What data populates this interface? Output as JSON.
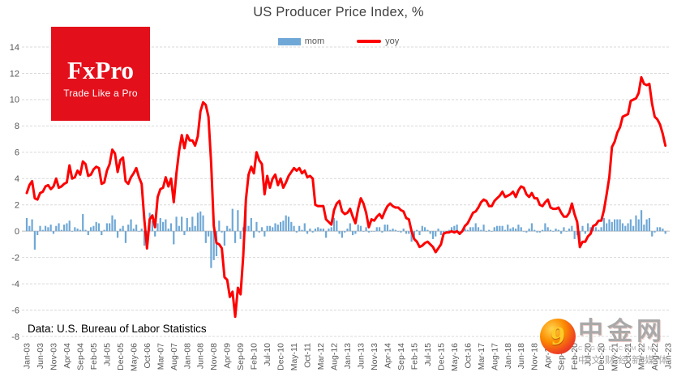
{
  "title": "US Producer Price Index, %",
  "logo": {
    "brand": "FxPro",
    "tagline": "Trade Like a Pro",
    "bg_color": "#e30f1b"
  },
  "legend": [
    {
      "label": "mom",
      "color": "#6fa8d6",
      "swatch": "bar"
    },
    {
      "label": "yoy",
      "color": "#fe0000",
      "swatch": "line"
    }
  ],
  "footer": {
    "source_note": "Data: U.S. Bureau of Labor Statistics"
  },
  "watermark": {
    "name": "中金网",
    "domain": "CNGOLD.COM.CN",
    "tagline": "中文财经新媒体"
  },
  "colors": {
    "grid": "#d9d9d9",
    "zero_axis": "#bfbfbf",
    "axis_text": "#595959",
    "title_text": "#3f3f3f"
  },
  "chart_data": {
    "type": "combo",
    "title": "US Producer Price Index, %",
    "ylim": [
      -8,
      14
    ],
    "y_tick_labels": [
      14,
      12,
      10,
      8,
      6,
      4,
      2,
      0,
      -2,
      -4,
      -6,
      -8
    ],
    "grid": "horizontal-dashed",
    "legend_position": "top-center",
    "x_start_month": "Jan-03",
    "x_tick_interval_months": 5,
    "n_slots": 241,
    "x_tick_labels": [
      "Jan-03",
      "Jun-03",
      "Nov-03",
      "Apr-04",
      "Sep-04",
      "Feb-05",
      "Jul-05",
      "Dec-05",
      "May-06",
      "Oct-06",
      "Mar-07",
      "Aug-07",
      "Jan-08",
      "Jun-08",
      "Nov-08",
      "Apr-09",
      "Sep-09",
      "Feb-10",
      "Jul-10",
      "Dec-10",
      "May-11",
      "Oct-11",
      "Mar-12",
      "Aug-12",
      "Jan-13",
      "Jun-13",
      "Nov-13",
      "Apr-14",
      "Sep-14",
      "Feb-15",
      "Jul-15",
      "Dec-15",
      "May-16",
      "Oct-16",
      "Mar-17",
      "Aug-17",
      "Jan-18",
      "Jun-18",
      "Nov-18",
      "Apr-19",
      "Sep-19",
      "Feb-20",
      "Jul-20",
      "Dec-20",
      "May-21",
      "Oct-21",
      "Mar-22",
      "Aug-22",
      "Jan-23"
    ],
    "series": [
      {
        "name": "mom",
        "type": "bar",
        "color": "#6fa8d6",
        "values": [
          1.0,
          0.4,
          0.9,
          -1.4,
          -0.3,
          0.4,
          0.1,
          0.4,
          0.3,
          0.5,
          -0.2,
          0.4,
          0.6,
          0.1,
          0.5,
          0.6,
          0.8,
          0.0,
          0.3,
          0.2,
          0.1,
          1.3,
          0.1,
          -0.3,
          0.3,
          0.4,
          0.7,
          0.6,
          -0.3,
          0.1,
          0.6,
          0.6,
          1.2,
          0.9,
          -0.5,
          0.2,
          0.4,
          -0.9,
          0.5,
          0.9,
          0.2,
          0.5,
          0.0,
          0.2,
          -1.1,
          -1.4,
          1.4,
          0.8,
          -0.4,
          0.6,
          1.0,
          0.7,
          0.9,
          0.2,
          0.6,
          -1.0,
          1.1,
          0.4,
          1.1,
          -0.3,
          1.0,
          0.3,
          1.1,
          0.4,
          1.4,
          1.5,
          1.2,
          -0.9,
          -0.4,
          -2.8,
          -2.2,
          -1.9,
          0.8,
          -0.1,
          -1.1,
          0.4,
          0.2,
          1.7,
          -0.9,
          1.6,
          -0.6,
          0.3,
          1.7,
          0.4,
          1.0,
          -0.5,
          0.7,
          -0.1,
          0.3,
          -0.4,
          0.4,
          0.4,
          0.3,
          0.6,
          0.5,
          0.7,
          0.8,
          1.2,
          1.1,
          0.7,
          0.4,
          -0.1,
          0.4,
          0.1,
          0.6,
          -0.2,
          0.2,
          -0.1,
          0.2,
          0.3,
          0.2,
          0.2,
          -0.5,
          0.2,
          0.3,
          1.0,
          0.8,
          -0.2,
          -0.5,
          -0.1,
          0.2,
          0.6,
          -0.3,
          -0.2,
          0.5,
          0.4,
          0.0,
          0.3,
          -0.1,
          0.0,
          0.0,
          0.3,
          0.3,
          -0.1,
          0.5,
          0.5,
          0.1,
          0.2,
          0.1,
          0.0,
          -0.1,
          0.2,
          -0.2,
          -0.2,
          -0.8,
          -0.4,
          0.1,
          -0.3,
          0.4,
          0.3,
          0.1,
          -0.2,
          -0.6,
          -0.4,
          0.2,
          -0.3,
          -0.2,
          -0.2,
          0.1,
          0.3,
          0.4,
          0.5,
          -0.3,
          0.1,
          0.2,
          0.1,
          0.3,
          0.3,
          0.6,
          0.3,
          0.1,
          0.5,
          0.0,
          0.1,
          0.0,
          0.3,
          0.4,
          0.4,
          0.4,
          0.1,
          0.5,
          0.2,
          0.3,
          0.2,
          0.5,
          0.3,
          0.0,
          -0.1,
          0.2,
          0.6,
          0.1,
          -0.1,
          -0.1,
          0.1,
          0.6,
          0.3,
          0.1,
          0.0,
          0.2,
          0.1,
          -0.2,
          0.3,
          0.0,
          0.2,
          0.4,
          -0.6,
          -0.3,
          -1.3,
          0.4,
          -0.2,
          0.6,
          0.3,
          0.4,
          0.3,
          0.1,
          0.3,
          1.0,
          0.6,
          0.9,
          0.7,
          0.9,
          0.9,
          0.9,
          0.6,
          0.4,
          0.6,
          0.9,
          0.4,
          1.2,
          0.9,
          1.6,
          0.5,
          0.9,
          1.0,
          -0.4,
          -0.1,
          0.3,
          0.3,
          0.2,
          -0.2
        ]
      },
      {
        "name": "yoy",
        "type": "line",
        "color": "#fe0000",
        "values": [
          2.9,
          3.5,
          3.8,
          2.5,
          2.4,
          2.9,
          3.0,
          3.4,
          3.5,
          3.2,
          3.4,
          4.0,
          3.3,
          3.4,
          3.6,
          3.7,
          5.0,
          4.0,
          4.1,
          4.6,
          4.3,
          5.3,
          5.1,
          4.2,
          4.3,
          4.7,
          4.9,
          4.8,
          3.6,
          3.7,
          4.6,
          5.1,
          6.2,
          5.9,
          4.5,
          5.4,
          5.6,
          3.8,
          3.6,
          4.1,
          4.4,
          4.8,
          4.1,
          3.6,
          0.9,
          -1.3,
          0.9,
          1.2,
          0.3,
          2.6,
          3.2,
          3.3,
          4.1,
          3.4,
          4.0,
          2.2,
          4.4,
          6.1,
          7.3,
          6.3,
          7.3,
          6.9,
          6.9,
          6.5,
          7.2,
          9.1,
          9.8,
          9.6,
          8.7,
          5.2,
          0.4,
          -0.9,
          -1.0,
          -1.3,
          -3.5,
          -3.7,
          -5.0,
          -4.6,
          -6.5,
          -4.3,
          -4.8,
          -1.9,
          2.4,
          4.3,
          4.9,
          4.4,
          6.0,
          5.4,
          5.1,
          2.8,
          4.2,
          3.3,
          4.0,
          4.3,
          3.5,
          4.0,
          3.3,
          3.7,
          4.2,
          4.5,
          4.8,
          4.6,
          4.8,
          4.4,
          4.6,
          4.1,
          4.2,
          4.0,
          2.0,
          1.9,
          1.9,
          1.9,
          0.9,
          0.7,
          0.5,
          1.6,
          2.1,
          2.3,
          1.5,
          1.3,
          1.4,
          1.7,
          1.1,
          0.6,
          1.7,
          2.5,
          2.1,
          1.4,
          0.3,
          0.9,
          0.8,
          1.1,
          1.3,
          1.0,
          1.5,
          1.9,
          2.1,
          1.9,
          1.8,
          1.8,
          1.6,
          1.5,
          1.0,
          0.9,
          0.0,
          -0.6,
          -0.8,
          -1.2,
          -1.1,
          -0.9,
          -0.8,
          -1.0,
          -1.2,
          -1.6,
          -1.3,
          -1.0,
          -0.2,
          -0.1,
          -0.1,
          0.0,
          -0.1,
          0.0,
          -0.2,
          0.0,
          0.4,
          0.6,
          1.0,
          1.4,
          1.5,
          1.8,
          2.2,
          2.4,
          2.3,
          1.9,
          1.9,
          2.3,
          2.5,
          2.7,
          3.0,
          2.6,
          2.7,
          2.8,
          3.0,
          2.6,
          3.1,
          3.4,
          3.3,
          2.8,
          2.6,
          2.9,
          2.5,
          2.5,
          2.0,
          1.9,
          2.2,
          2.4,
          1.8,
          1.7,
          1.7,
          1.8,
          1.4,
          1.1,
          1.1,
          1.4,
          2.1,
          1.3,
          0.7,
          -1.2,
          -0.8,
          -0.8,
          -0.4,
          -0.2,
          0.4,
          0.5,
          0.8,
          0.8,
          1.6,
          2.8,
          4.1,
          6.4,
          6.8,
          7.5,
          7.9,
          8.7,
          8.8,
          8.9,
          9.9,
          10.0,
          10.1,
          10.5,
          11.7,
          11.2,
          11.1,
          11.2,
          9.7,
          8.7,
          8.5,
          8.1,
          7.4,
          6.5
        ]
      }
    ]
  }
}
